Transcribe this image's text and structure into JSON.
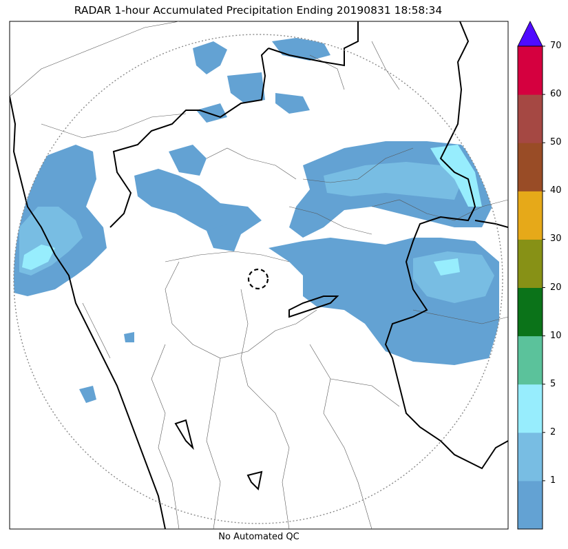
{
  "title": "RADAR 1-hour Accumulated Precipitation Ending 20190831 18:58:34",
  "footer": "No Automated QC",
  "colorbar": {
    "bins": [
      {
        "lower": 0,
        "upper": 1,
        "color": "#63a2d3"
      },
      {
        "lower": 1,
        "upper": 2,
        "color": "#78bde3"
      },
      {
        "lower": 2,
        "upper": 5,
        "color": "#97edfd"
      },
      {
        "lower": 5,
        "upper": 10,
        "color": "#5bc29b"
      },
      {
        "lower": 10,
        "upper": 20,
        "color": "#0b7319"
      },
      {
        "lower": 20,
        "upper": 30,
        "color": "#879116"
      },
      {
        "lower": 30,
        "upper": 40,
        "color": "#e6a919"
      },
      {
        "lower": 40,
        "upper": 50,
        "color": "#994c26"
      },
      {
        "lower": 50,
        "upper": 60,
        "color": "#a54843"
      },
      {
        "lower": 60,
        "upper": 70,
        "color": "#d5003f"
      }
    ],
    "extend_color": "#4f0bff",
    "tick_labels": [
      "1",
      "2",
      "5",
      "10",
      "20",
      "30",
      "40",
      "50",
      "60",
      "70"
    ]
  },
  "map": {
    "range_ring": "dotted",
    "radar_site_marker": "dashed-circle",
    "state_borders_color": "#000000",
    "district_borders_color": "#555555"
  }
}
